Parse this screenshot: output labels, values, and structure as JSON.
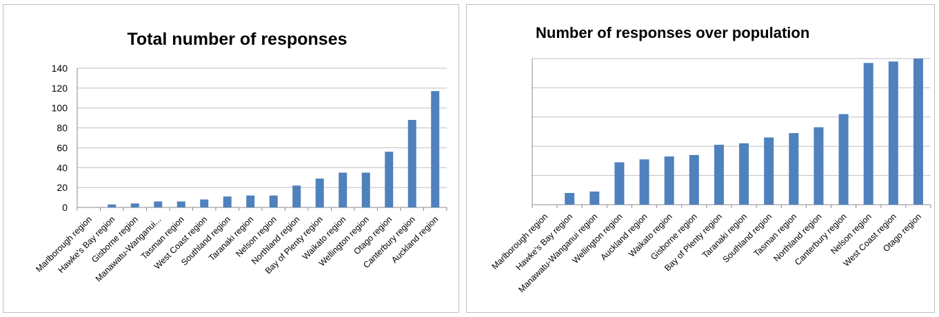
{
  "colors": {
    "bar": "#4f81bd",
    "grid": "#bfbfbf",
    "axis": "#888888",
    "text": "#000000"
  },
  "chart_data": [
    {
      "type": "bar",
      "title": "Total number of responses",
      "xlabel": "",
      "ylabel": "",
      "ylim": [
        0,
        140
      ],
      "yticks": [
        0,
        20,
        40,
        60,
        80,
        100,
        120,
        140
      ],
      "ytick_labels": [
        "0",
        "20",
        "40",
        "60",
        "80",
        "100",
        "120",
        "140"
      ],
      "grid": true,
      "legend": "none",
      "categories": [
        "Marlborough region",
        "Hawke's Bay region",
        "Gisborne region",
        "Manawatu-Wanganui...",
        "Tasman region",
        "West Coast region",
        "Southland region",
        "Taranaki region",
        "Nelson region",
        "Northland region",
        "Bay of Plenty region",
        "Waikato region",
        "Wellington region",
        "Otago region",
        "Canterbury region",
        "Auckland region"
      ],
      "values": [
        0,
        3,
        4,
        6,
        6,
        8,
        11,
        12,
        12,
        22,
        29,
        35,
        35,
        56,
        88,
        117
      ]
    },
    {
      "type": "bar",
      "title": "Number of responses over population",
      "xlabel": "",
      "ylabel": "",
      "ylim": [
        0,
        1
      ],
      "yticks": [
        0,
        0.2,
        0.4,
        0.6,
        0.8,
        1
      ],
      "ytick_labels": [],
      "grid": true,
      "legend": "none",
      "categories": [
        "Marlborough region",
        "Hawke's Bay region",
        "Manawatu-Wanganui region",
        "Wellington region",
        "Auckland region",
        "Waikato region",
        "Gisborne region",
        "Bay of Plenty region",
        "Taranaki region",
        "Southland region",
        "Tasman region",
        "Northland region",
        "Canterbury region",
        "Nelson region",
        "West Coast region",
        "Otago region"
      ],
      "values": [
        0,
        0.08,
        0.09,
        0.29,
        0.31,
        0.33,
        0.34,
        0.41,
        0.42,
        0.46,
        0.49,
        0.53,
        0.62,
        0.97,
        0.98,
        1.0
      ]
    }
  ]
}
